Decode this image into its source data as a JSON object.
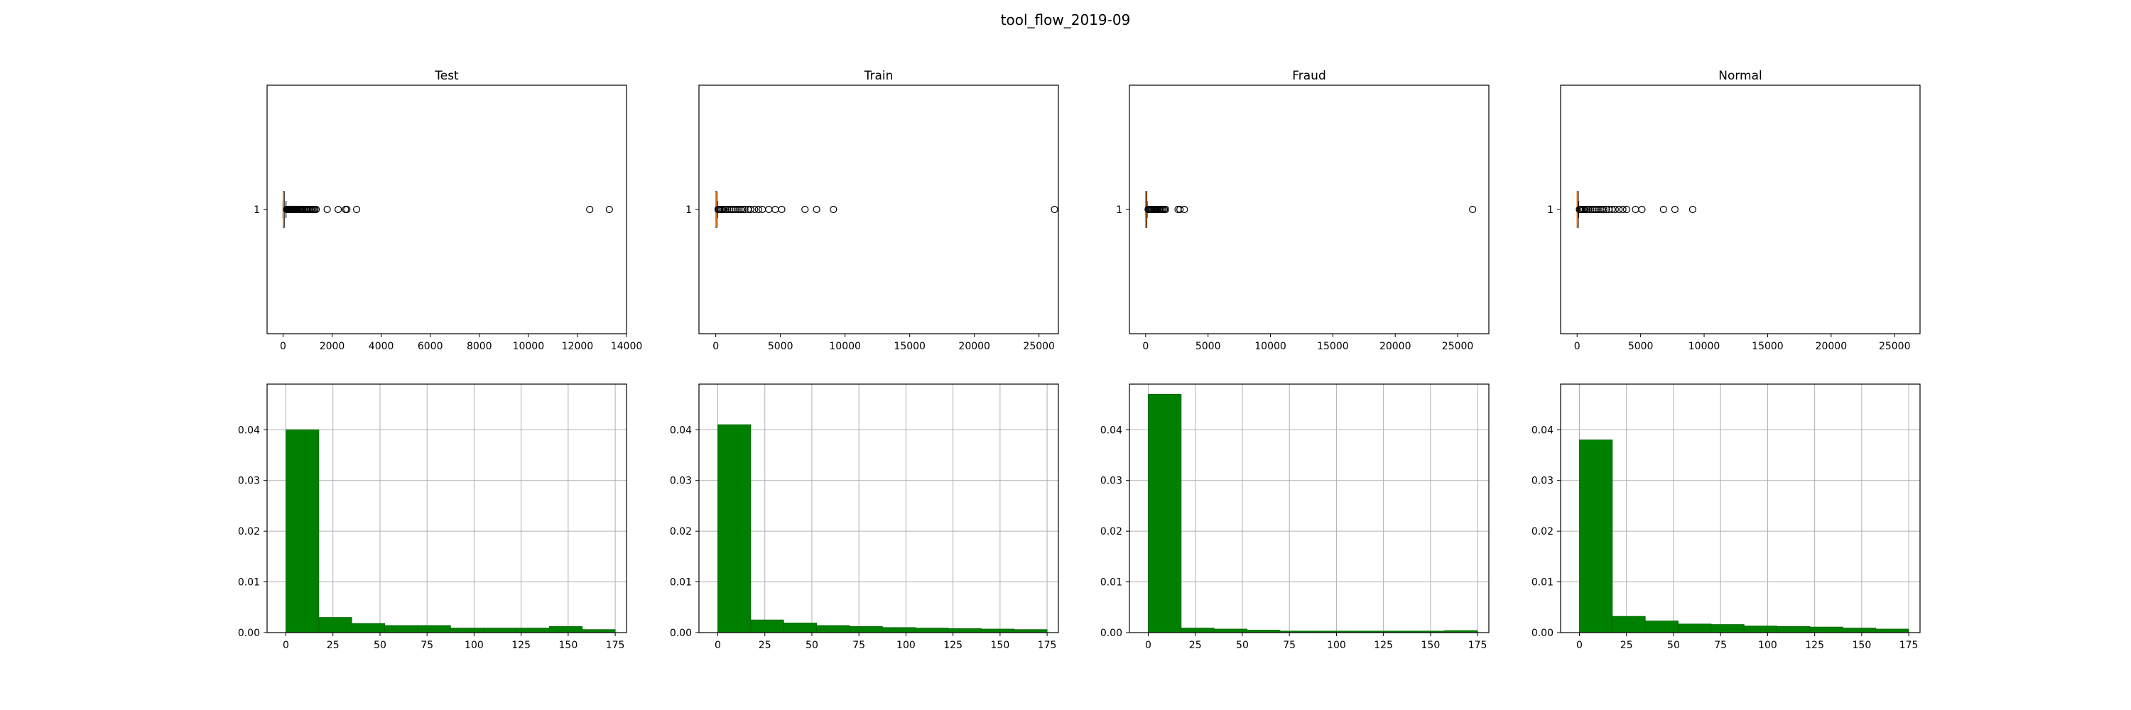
{
  "figure_title": "tool_flow_2019-09",
  "chart_data": [
    {
      "type": "box",
      "panel": "Test",
      "title": "Test",
      "orientation": "horizontal",
      "y_ticks": [
        "1"
      ],
      "xlim": [
        -650,
        14000
      ],
      "x_ticks": [
        0,
        2000,
        4000,
        6000,
        8000,
        10000,
        12000,
        14000
      ],
      "box": {
        "q1": 5,
        "median": 15,
        "q3": 45,
        "whisker_low": 0,
        "whisker_high": 120
      },
      "fliers": [
        150,
        180,
        210,
        240,
        270,
        300,
        330,
        360,
        390,
        420,
        450,
        480,
        510,
        540,
        570,
        600,
        640,
        680,
        720,
        760,
        800,
        850,
        900,
        950,
        1000,
        1050,
        1100,
        1150,
        1200,
        1250,
        1300,
        1350,
        1800,
        2250,
        2550,
        2600,
        3000,
        12500,
        13300
      ]
    },
    {
      "type": "box",
      "panel": "Train",
      "title": "Train",
      "orientation": "horizontal",
      "y_ticks": [
        "1"
      ],
      "xlim": [
        -1300,
        26500
      ],
      "x_ticks": [
        0,
        5000,
        10000,
        15000,
        20000,
        25000
      ],
      "box": {
        "q1": 5,
        "median": 15,
        "q3": 45,
        "whisker_low": 0,
        "whisker_high": 120
      },
      "fliers": [
        180,
        250,
        330,
        420,
        520,
        640,
        760,
        900,
        1050,
        1200,
        1350,
        1500,
        1650,
        1800,
        1950,
        2100,
        2250,
        2500,
        2700,
        3000,
        3300,
        3600,
        4100,
        4600,
        5100,
        6900,
        7800,
        9100,
        26200
      ]
    },
    {
      "type": "box",
      "panel": "Fraud",
      "title": "Fraud",
      "orientation": "horizontal",
      "y_ticks": [
        "1"
      ],
      "xlim": [
        -1300,
        27500
      ],
      "x_ticks": [
        0,
        5000,
        10000,
        15000,
        20000,
        25000
      ],
      "box": {
        "q1": 5,
        "median": 15,
        "q3": 45,
        "whisker_low": 0,
        "whisker_high": 120
      },
      "fliers": [
        200,
        280,
        360,
        440,
        520,
        600,
        680,
        760,
        840,
        920,
        1000,
        1100,
        1200,
        1300,
        1400,
        1500,
        1600,
        2600,
        2750,
        3100,
        26200
      ]
    },
    {
      "type": "box",
      "panel": "Normal",
      "title": "Normal",
      "orientation": "horizontal",
      "y_ticks": [
        "1"
      ],
      "xlim": [
        -1300,
        27000
      ],
      "x_ticks": [
        0,
        5000,
        10000,
        15000,
        20000,
        25000
      ],
      "box": {
        "q1": 5,
        "median": 15,
        "q3": 45,
        "whisker_low": 0,
        "whisker_high": 120
      },
      "fliers": [
        180,
        250,
        330,
        420,
        520,
        640,
        760,
        900,
        1050,
        1200,
        1350,
        1500,
        1650,
        1800,
        1950,
        2100,
        2300,
        2500,
        2750,
        3000,
        3300,
        3600,
        3900,
        4600,
        5100,
        6800,
        7700,
        9100
      ]
    },
    {
      "type": "bar",
      "panel": "Test",
      "subtype": "histogram",
      "grid": true,
      "xlim": [
        -10,
        181
      ],
      "ylim": [
        0,
        0.049
      ],
      "x_ticks": [
        0,
        25,
        50,
        75,
        100,
        125,
        150,
        175
      ],
      "y_ticks": [
        0.0,
        0.01,
        0.02,
        0.03,
        0.04
      ],
      "bin_edges": [
        0,
        17.5,
        35,
        52.5,
        70,
        87.5,
        105,
        122.5,
        140,
        157.5,
        175
      ],
      "values": [
        0.04,
        0.003,
        0.0018,
        0.0014,
        0.0014,
        0.0009,
        0.0009,
        0.0009,
        0.0012,
        0.0006
      ]
    },
    {
      "type": "bar",
      "panel": "Train",
      "subtype": "histogram",
      "grid": true,
      "xlim": [
        -10,
        181
      ],
      "ylim": [
        0,
        0.049
      ],
      "x_ticks": [
        0,
        25,
        50,
        75,
        100,
        125,
        150,
        175
      ],
      "y_ticks": [
        0.0,
        0.01,
        0.02,
        0.03,
        0.04
      ],
      "bin_edges": [
        0,
        17.5,
        35,
        52.5,
        70,
        87.5,
        105,
        122.5,
        140,
        157.5,
        175
      ],
      "values": [
        0.041,
        0.0025,
        0.0019,
        0.0014,
        0.0012,
        0.001,
        0.0009,
        0.0008,
        0.0007,
        0.0006
      ]
    },
    {
      "type": "bar",
      "panel": "Fraud",
      "subtype": "histogram",
      "grid": true,
      "xlim": [
        -10,
        181
      ],
      "ylim": [
        0,
        0.049
      ],
      "x_ticks": [
        0,
        25,
        50,
        75,
        100,
        125,
        150,
        175
      ],
      "y_ticks": [
        0.0,
        0.01,
        0.02,
        0.03,
        0.04
      ],
      "bin_edges": [
        0,
        17.5,
        35,
        52.5,
        70,
        87.5,
        105,
        122.5,
        140,
        157.5,
        175
      ],
      "values": [
        0.047,
        0.0009,
        0.0007,
        0.0005,
        0.0003,
        0.0003,
        0.0003,
        0.0003,
        0.0003,
        0.0004
      ]
    },
    {
      "type": "bar",
      "panel": "Normal",
      "subtype": "histogram",
      "grid": true,
      "xlim": [
        -10,
        181
      ],
      "ylim": [
        0,
        0.049
      ],
      "x_ticks": [
        0,
        25,
        50,
        75,
        100,
        125,
        150,
        175
      ],
      "y_ticks": [
        0.0,
        0.01,
        0.02,
        0.03,
        0.04
      ],
      "bin_edges": [
        0,
        17.5,
        35,
        52.5,
        70,
        87.5,
        105,
        122.5,
        140,
        157.5,
        175
      ],
      "values": [
        0.038,
        0.0032,
        0.0023,
        0.0017,
        0.0016,
        0.0013,
        0.0012,
        0.0011,
        0.0009,
        0.0007
      ]
    }
  ]
}
